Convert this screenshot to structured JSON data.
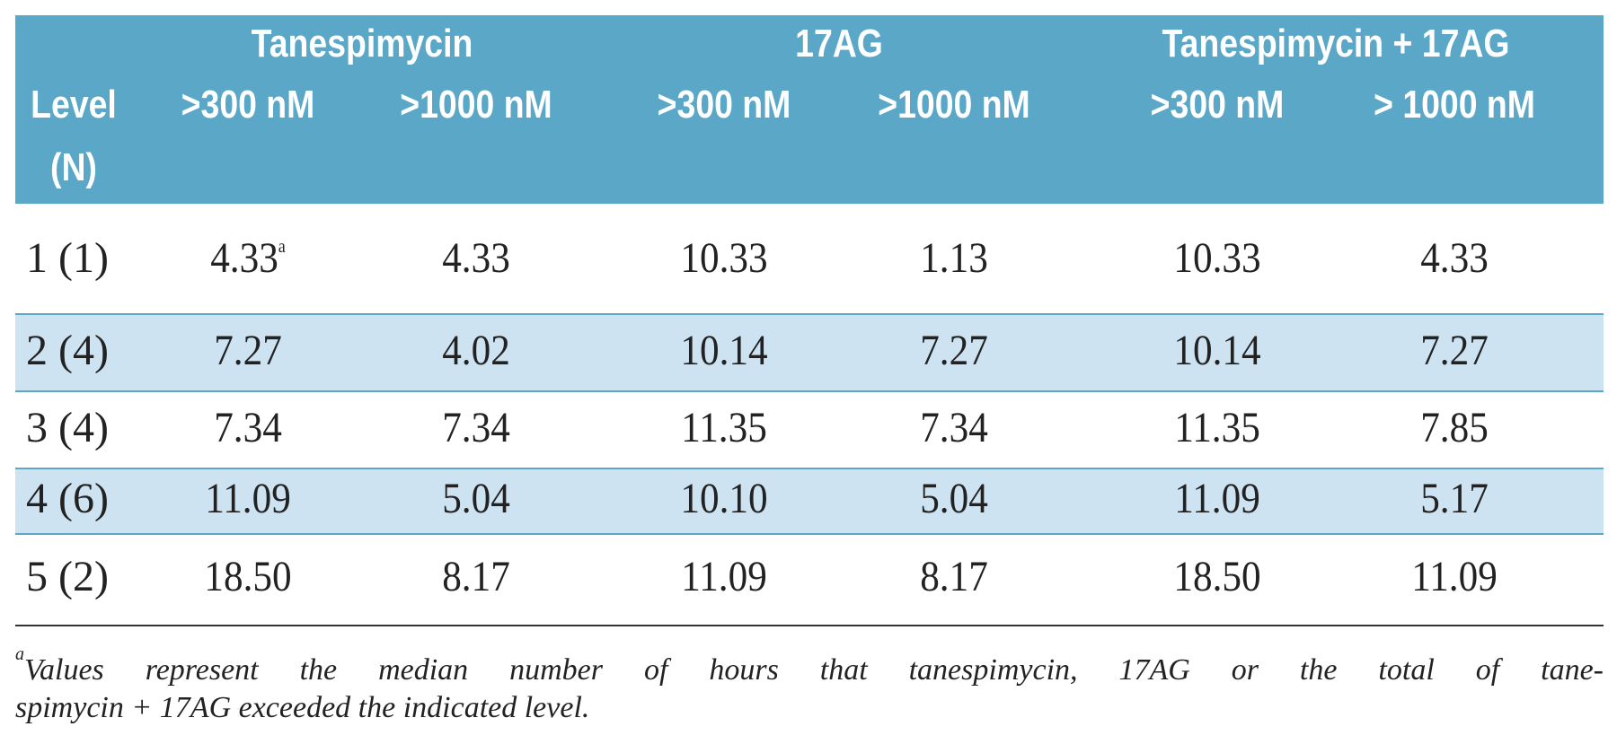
{
  "header": {
    "level_label": "Level",
    "n_label": "(N)",
    "groups": [
      {
        "label": "Tanespimycin",
        "columns": [
          ">300 nM",
          ">1000 nM"
        ]
      },
      {
        "label": "17AG",
        "columns": [
          ">300 nM",
          ">1000 nM"
        ]
      },
      {
        "label": "Tanespimycin + 17AG",
        "columns": [
          ">300 nM",
          "> 1000 nM"
        ]
      }
    ]
  },
  "rows": [
    {
      "level": "1 (1)",
      "values": [
        "4.33",
        "4.33",
        "10.33",
        "1.13",
        "10.33",
        "4.33"
      ],
      "note": "a"
    },
    {
      "level": "2 (4)",
      "values": [
        "7.27",
        "4.02",
        "10.14",
        "7.27",
        "10.14",
        "7.27"
      ]
    },
    {
      "level": "3 (4)",
      "values": [
        "7.34",
        "7.34",
        "11.35",
        "7.34",
        "11.35",
        "7.85"
      ]
    },
    {
      "level": "4 (6)",
      "values": [
        "11.09",
        "5.04",
        "10.10",
        "5.04",
        "11.09",
        "5.17"
      ]
    },
    {
      "level": "5 (2)",
      "values": [
        "18.50",
        "8.17",
        "11.09",
        "8.17",
        "18.50",
        "11.09"
      ]
    }
  ],
  "footnote": {
    "marker": "a",
    "lines": [
      "Values represent the median number of hours that tanespimycin, 17AG or the total of tane-",
      "spimycin + 17AG exceeded the indicated level."
    ]
  }
}
